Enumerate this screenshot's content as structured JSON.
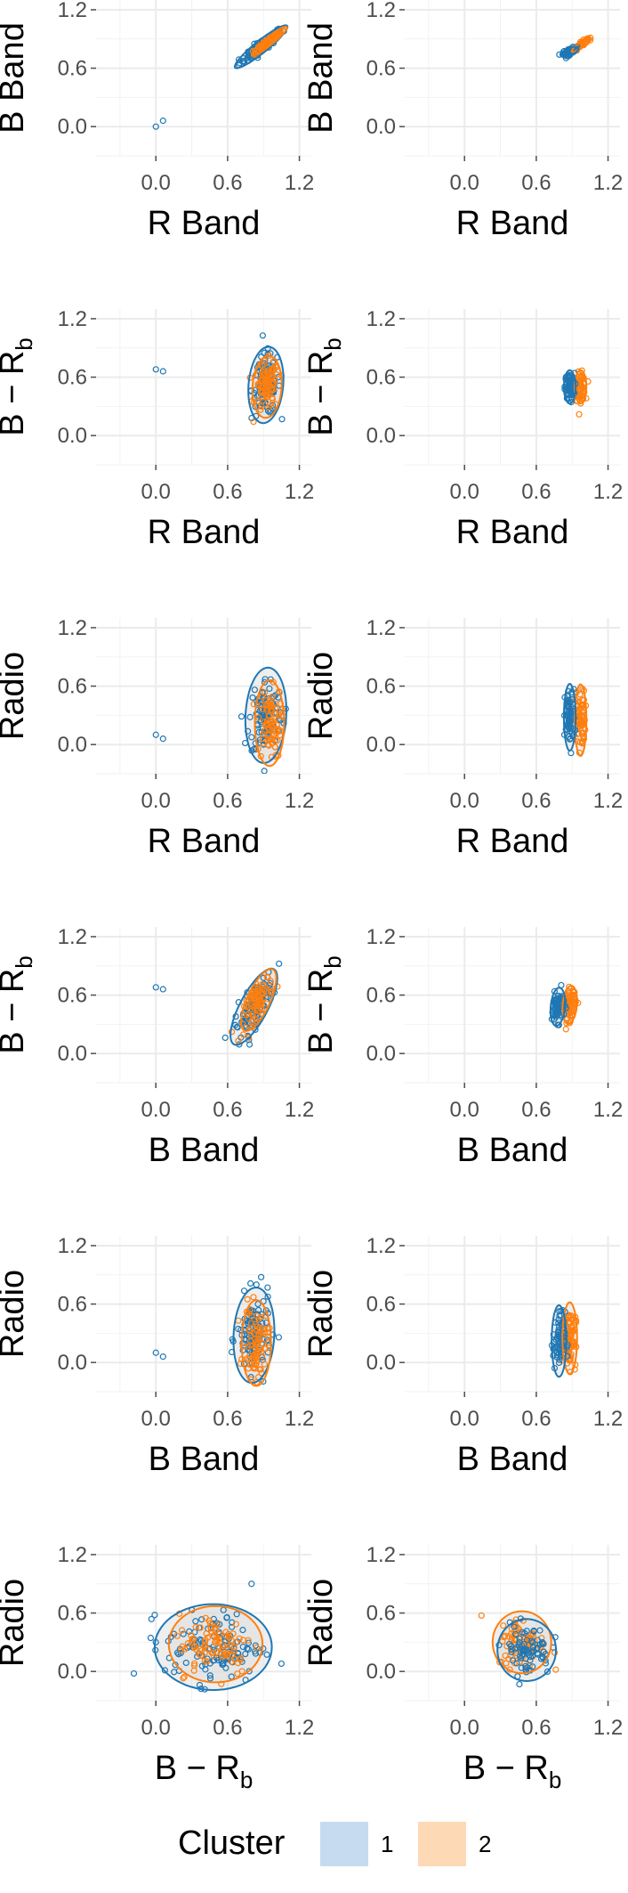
{
  "chart_data": {
    "type": "scatter",
    "layout": "6 rows x 2 columns of scatter panels with 95% ellipses per cluster",
    "x_ticks": [
      "0.0",
      "0.6",
      "1.2"
    ],
    "y_ticks": [
      "1.2",
      "0.6",
      "0.0"
    ],
    "xlim": [
      -0.5,
      1.3
    ],
    "ylim": [
      -0.3,
      1.3
    ],
    "grid": true,
    "colors": {
      "1": "#1f77b4",
      "2": "#ff7f0e",
      "fill_1": "#c6dbef",
      "fill_2": "#fdd9b5"
    },
    "legend": {
      "title": "Cluster",
      "position": "bottom",
      "items": [
        "1",
        "2"
      ]
    },
    "panels": [
      {
        "x_label": "R Band",
        "y_label": "B Band",
        "x_label_sub": "",
        "y_label_sub": "",
        "series": [
          {
            "name": "1",
            "center": [
              0.88,
              0.82
            ],
            "sd": [
              0.09,
              0.09
            ],
            "rho": 0.93,
            "n": 90,
            "outliers": [
              [
                0.0,
                0.0
              ],
              [
                0.06,
                0.06
              ]
            ]
          },
          {
            "name": "2",
            "center": [
              0.95,
              0.88
            ],
            "sd": [
              0.06,
              0.06
            ],
            "rho": 0.93,
            "n": 80,
            "outliers": []
          }
        ]
      },
      {
        "x_label": "R Band",
        "y_label": "B Band",
        "x_label_sub": "",
        "y_label_sub": "",
        "series": [
          {
            "name": "2",
            "center": [
              0.97,
              0.84
            ],
            "sd": [
              0.03,
              0.03
            ],
            "rho": 0.9,
            "n": 60,
            "outliers": []
          },
          {
            "name": "1",
            "center": [
              0.88,
              0.77
            ],
            "sd": [
              0.03,
              0.02
            ],
            "rho": 0.6,
            "n": 60,
            "outliers": []
          }
        ]
      },
      {
        "x_label": "R Band",
        "y_label": "B − R",
        "x_label_sub": "",
        "y_label_sub": "b",
        "series": [
          {
            "name": "1",
            "center": [
              0.92,
              0.52
            ],
            "sd": [
              0.06,
              0.16
            ],
            "rho": 0.15,
            "n": 100,
            "outliers": [
              [
                0.0,
                0.68
              ],
              [
                0.06,
                0.66
              ]
            ]
          },
          {
            "name": "2",
            "center": [
              0.93,
              0.5
            ],
            "sd": [
              0.05,
              0.13
            ],
            "rho": 0.1,
            "n": 80,
            "outliers": []
          }
        ]
      },
      {
        "x_label": "R Band",
        "y_label": "B − R",
        "x_label_sub": "",
        "y_label_sub": "b",
        "series": [
          {
            "name": "2",
            "center": [
              0.97,
              0.5
            ],
            "sd": [
              0.02,
              0.07
            ],
            "rho": 0.0,
            "n": 70,
            "outliers": []
          },
          {
            "name": "1",
            "center": [
              0.88,
              0.5
            ],
            "sd": [
              0.02,
              0.07
            ],
            "rho": 0.0,
            "n": 70,
            "outliers": []
          }
        ]
      },
      {
        "x_label": "R Band",
        "y_label": "Radio",
        "x_label_sub": "",
        "y_label_sub": "",
        "series": [
          {
            "name": "1",
            "center": [
              0.92,
              0.3
            ],
            "sd": [
              0.07,
              0.2
            ],
            "rho": 0.1,
            "n": 100,
            "outliers": [
              [
                0.0,
                0.1
              ],
              [
                0.06,
                0.06
              ]
            ]
          },
          {
            "name": "2",
            "center": [
              0.95,
              0.22
            ],
            "sd": [
              0.05,
              0.18
            ],
            "rho": 0.0,
            "n": 80,
            "outliers": []
          }
        ]
      },
      {
        "x_label": "R Band",
        "y_label": "Radio",
        "x_label_sub": "",
        "y_label_sub": "",
        "series": [
          {
            "name": "2",
            "center": [
              0.97,
              0.25
            ],
            "sd": [
              0.02,
              0.15
            ],
            "rho": 0.0,
            "n": 70,
            "outliers": []
          },
          {
            "name": "1",
            "center": [
              0.88,
              0.28
            ],
            "sd": [
              0.02,
              0.14
            ],
            "rho": 0.0,
            "n": 70,
            "outliers": []
          }
        ]
      },
      {
        "x_label": "B Band",
        "y_label": "B − R",
        "x_label_sub": "",
        "y_label_sub": "b",
        "series": [
          {
            "name": "1",
            "center": [
              0.82,
              0.48
            ],
            "sd": [
              0.08,
              0.16
            ],
            "rho": 0.75,
            "n": 100,
            "outliers": [
              [
                0.0,
                0.68
              ],
              [
                0.06,
                0.66
              ]
            ]
          },
          {
            "name": "2",
            "center": [
              0.86,
              0.55
            ],
            "sd": [
              0.06,
              0.13
            ],
            "rho": 0.7,
            "n": 80,
            "outliers": []
          }
        ]
      },
      {
        "x_label": "B Band",
        "y_label": "B − R",
        "x_label_sub": "",
        "y_label_sub": "b",
        "series": [
          {
            "name": "2",
            "center": [
              0.88,
              0.5
            ],
            "sd": [
              0.025,
              0.08
            ],
            "rho": 0.2,
            "n": 70,
            "outliers": []
          },
          {
            "name": "1",
            "center": [
              0.78,
              0.48
            ],
            "sd": [
              0.025,
              0.08
            ],
            "rho": 0.2,
            "n": 70,
            "outliers": []
          }
        ]
      },
      {
        "x_label": "B Band",
        "y_label": "Radio",
        "x_label_sub": "",
        "y_label_sub": "",
        "series": [
          {
            "name": "1",
            "center": [
              0.82,
              0.28
            ],
            "sd": [
              0.07,
              0.2
            ],
            "rho": 0.1,
            "n": 100,
            "outliers": [
              [
                0.0,
                0.1
              ],
              [
                0.06,
                0.06
              ]
            ]
          },
          {
            "name": "2",
            "center": [
              0.84,
              0.2
            ],
            "sd": [
              0.05,
              0.18
            ],
            "rho": 0.0,
            "n": 80,
            "outliers": []
          }
        ]
      },
      {
        "x_label": "B Band",
        "y_label": "Radio",
        "x_label_sub": "",
        "y_label_sub": "",
        "series": [
          {
            "name": "2",
            "center": [
              0.88,
              0.25
            ],
            "sd": [
              0.025,
              0.15
            ],
            "rho": 0.0,
            "n": 70,
            "outliers": []
          },
          {
            "name": "1",
            "center": [
              0.79,
              0.22
            ],
            "sd": [
              0.025,
              0.15
            ],
            "rho": 0.0,
            "n": 70,
            "outliers": []
          }
        ]
      },
      {
        "x_label": "B − R",
        "y_label": "Radio",
        "x_label_sub": "b",
        "y_label_sub": "",
        "series": [
          {
            "name": "1",
            "center": [
              0.48,
              0.25
            ],
            "sd": [
              0.2,
              0.18
            ],
            "rho": 0.0,
            "n": 120,
            "outliers": [
              [
                0.8,
                0.9
              ],
              [
                0.0,
                0.3
              ],
              [
                1.05,
                0.08
              ]
            ]
          },
          {
            "name": "2",
            "center": [
              0.5,
              0.28
            ],
            "sd": [
              0.16,
              0.16
            ],
            "rho": 0.0,
            "n": 90,
            "outliers": []
          }
        ]
      },
      {
        "x_label": "B − R",
        "y_label": "Radio",
        "x_label_sub": "b",
        "y_label_sub": "",
        "series": [
          {
            "name": "2",
            "center": [
              0.48,
              0.3
            ],
            "sd": [
              0.1,
              0.13
            ],
            "rho": 0.0,
            "n": 80,
            "outliers": []
          },
          {
            "name": "1",
            "center": [
              0.52,
              0.22
            ],
            "sd": [
              0.1,
              0.13
            ],
            "rho": 0.0,
            "n": 80,
            "outliers": []
          }
        ]
      }
    ]
  }
}
